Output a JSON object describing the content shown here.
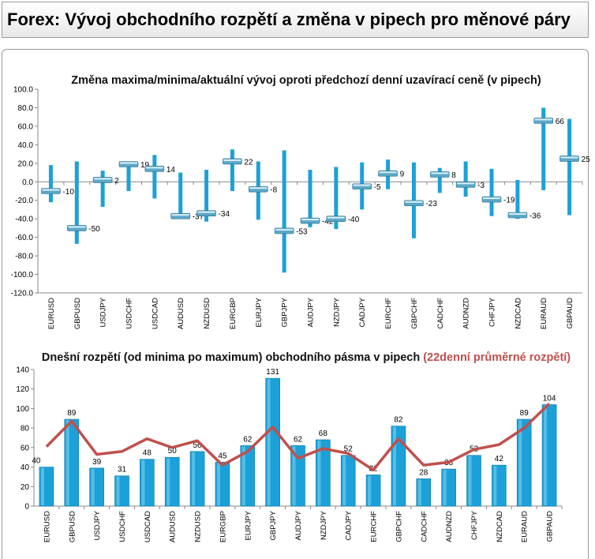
{
  "page_title": "Forex: Vývoj obchodního rozpětí a změna v pipech pro měnové páry",
  "colors": {
    "bar": "#1ba1d8",
    "bar_dark": "#0a78a8",
    "avg_line": "#c0504d",
    "marker": "#5aa8c8"
  },
  "chart_data": [
    {
      "type": "bar",
      "title": "Změna maxima/minima/aktuální vývoj oproti předchozí denní uzavírací ceně (v pipech)",
      "categories": [
        "EURUSD",
        "GBPUSD",
        "USDJPY",
        "USDCHF",
        "USDCAD",
        "AUDUSD",
        "NZDUSD",
        "EURGBP",
        "EURJPY",
        "GBPJPY",
        "AUDJPY",
        "NZDJPY",
        "CADJPY",
        "EURCHF",
        "GBPCHF",
        "CADCHF",
        "AUDNZD",
        "CHFJPY",
        "NZDCAD",
        "EURAUD",
        "GBPAUD"
      ],
      "high": [
        18,
        22,
        12,
        22,
        29,
        10,
        13,
        35,
        22,
        34,
        13,
        16,
        21,
        24,
        21,
        15,
        22,
        14,
        2,
        80,
        68
      ],
      "low": [
        -22,
        -67,
        -27,
        -10,
        -18,
        -40,
        -43,
        -10,
        -41,
        -98,
        -49,
        -51,
        -30,
        -8,
        -61,
        -12,
        -16,
        -37,
        -40,
        -9,
        -36
      ],
      "current": [
        -10,
        -50,
        2,
        19,
        14,
        -37,
        -34,
        22,
        -8,
        -53,
        -42,
        -40,
        -5,
        9,
        -23,
        8,
        -3,
        -19,
        -36,
        66,
        25
      ],
      "ylim": [
        -120,
        100
      ],
      "yticks": [
        "100.0",
        "80.0",
        "60.0",
        "40.0",
        "20.0",
        "0.0",
        "-20.0",
        "-40.0",
        "-60.0",
        "-80.0",
        "-100.0",
        "-120.0"
      ],
      "grid": false
    },
    {
      "type": "bar",
      "title": "Dnešní rozpětí (od minima po maximum) obchodního pásma v pipech",
      "title_highlight": "(22denní průměrné rozpětí)",
      "categories": [
        "EURUSD",
        "GBPUSD",
        "USDJPY",
        "USDCHF",
        "USDCAD",
        "AUDUSD",
        "NZDUSD",
        "EURGBP",
        "EURJPY",
        "GBPJPY",
        "AUDJPY",
        "NZDJPY",
        "CADJPY",
        "EURCHF",
        "GBPCHF",
        "CADCHF",
        "AUDNZD",
        "CHFJPY",
        "NZDCAD",
        "EURAUD",
        "GBPAUD"
      ],
      "values": [
        40,
        89,
        39,
        31,
        48,
        50,
        56,
        45,
        62,
        131,
        62,
        68,
        52,
        32,
        82,
        28,
        38,
        52,
        42,
        89,
        104
      ],
      "avg_line": [
        61,
        87,
        53,
        56,
        69,
        60,
        67,
        42,
        56,
        81,
        49,
        59,
        54,
        37,
        69,
        42,
        45,
        58,
        63,
        80,
        105
      ],
      "ylim": [
        0,
        140
      ],
      "yticks": [
        "0",
        "20",
        "40",
        "60",
        "80",
        "100",
        "120",
        "140"
      ],
      "grid": false
    }
  ]
}
